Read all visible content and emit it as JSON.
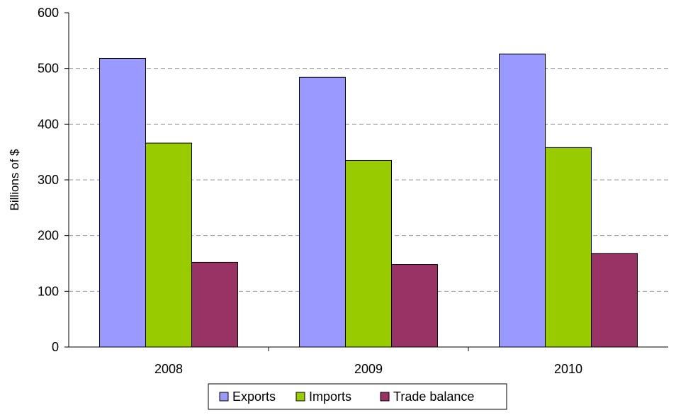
{
  "chart_data": {
    "type": "bar",
    "title": "",
    "xlabel": "",
    "ylabel": "Billions of $",
    "ylim": [
      0,
      600
    ],
    "yticks": [
      0,
      100,
      200,
      300,
      400,
      500,
      600
    ],
    "grid": "horizontal dashed",
    "legend_position": "bottom",
    "categories": [
      "2008",
      "2009",
      "2010"
    ],
    "series": [
      {
        "name": "Exports",
        "color": "#9999ff",
        "values": [
          518,
          484,
          526
        ]
      },
      {
        "name": "Imports",
        "color": "#99cc00",
        "values": [
          366,
          335,
          358
        ]
      },
      {
        "name": "Trade balance",
        "color": "#993366",
        "values": [
          152,
          148,
          168
        ]
      }
    ]
  }
}
